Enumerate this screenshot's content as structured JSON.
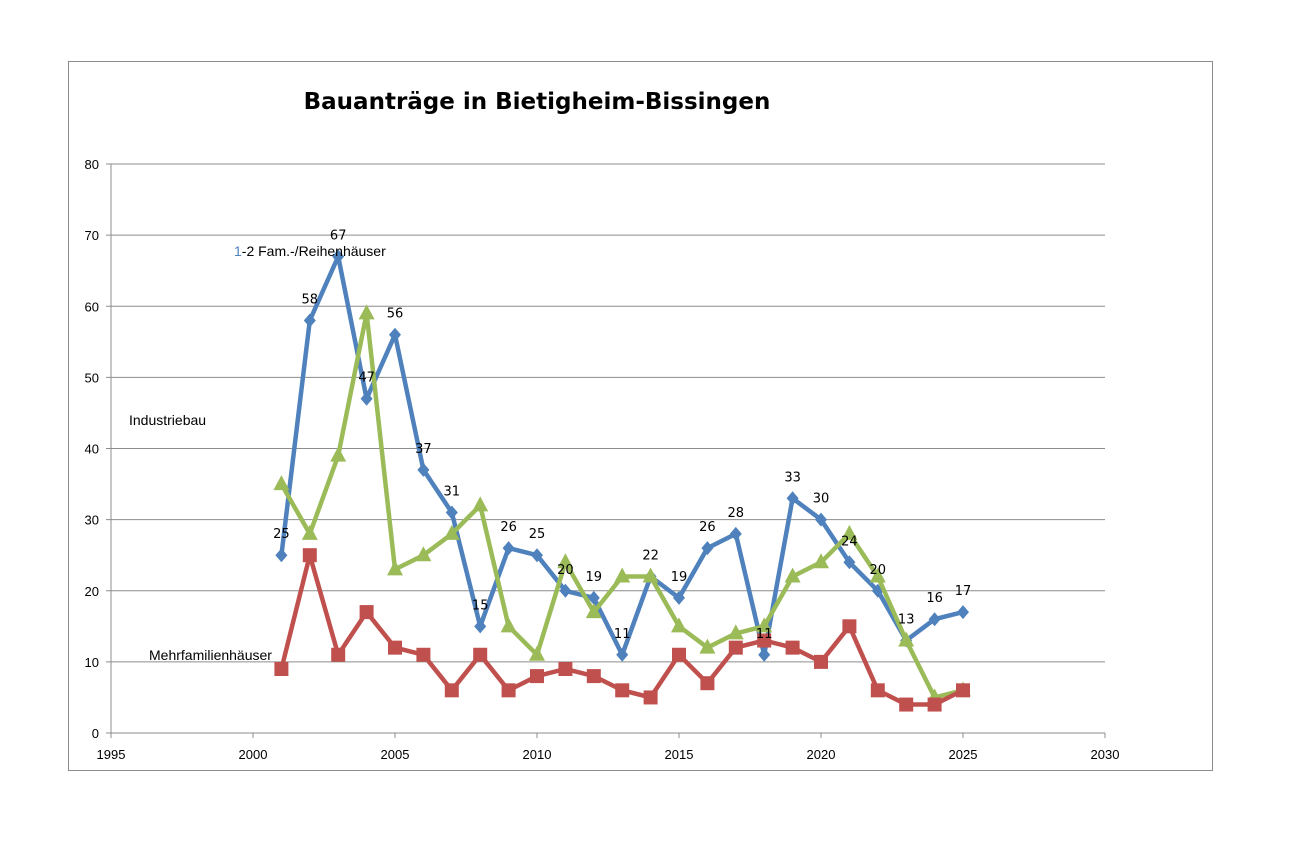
{
  "chart_data": {
    "type": "line",
    "title": "Bauanträge in Bietigheim-Bissingen",
    "xlim": [
      1995,
      2030
    ],
    "ylim": [
      0,
      80
    ],
    "x_ticks": [
      "1995",
      "2000",
      "2005",
      "2010",
      "2015",
      "2020",
      "2025",
      "2030"
    ],
    "y_ticks": [
      "0",
      "10",
      "20",
      "30",
      "40",
      "50",
      "60",
      "70",
      "80"
    ],
    "grid": "horizontal",
    "legend": "none",
    "series_labels": {
      "einfamilien": {
        "prefix": "1",
        "text": "-2 Fam.-/Reihenhäuser"
      },
      "industrie": {
        "text": "Industriebau"
      },
      "mehrfamilien": {
        "text": "Mehrfamilienhäuser"
      }
    },
    "series": [
      {
        "key": "einfamilien",
        "color": "#4f81bd",
        "marker": "diamond",
        "x": [
          2001,
          2002,
          2003,
          2004,
          2005,
          2006,
          2007,
          2008,
          2009,
          2010,
          2011,
          2012,
          2013,
          2014,
          2015,
          2016,
          2017,
          2018,
          2019,
          2020,
          2021,
          2022,
          2023,
          2024,
          2025
        ],
        "values": [
          25,
          58,
          67,
          47,
          56,
          37,
          31,
          15,
          26,
          25,
          20,
          19,
          11,
          22,
          19,
          26,
          28,
          11,
          33,
          30,
          24,
          20,
          13,
          16,
          17
        ],
        "data_labels": [
          "25",
          "58",
          "67",
          "47",
          "56",
          "37",
          "31",
          "15",
          "26",
          "25",
          "20",
          "19",
          "11",
          "22",
          "19",
          "26",
          "28",
          "11",
          "33",
          "30",
          "24",
          "20",
          "13",
          "16",
          "17"
        ]
      },
      {
        "key": "industrie",
        "color": "#9bbb59",
        "marker": "triangle",
        "x": [
          2001,
          2002,
          2003,
          2004,
          2005,
          2006,
          2007,
          2008,
          2009,
          2010,
          2011,
          2012,
          2013,
          2014,
          2015,
          2016,
          2017,
          2018,
          2019,
          2020,
          2021,
          2022,
          2023,
          2024,
          2025
        ],
        "values": [
          35,
          28,
          39,
          59,
          23,
          25,
          28,
          32,
          15,
          11,
          24,
          17,
          22,
          22,
          15,
          12,
          14,
          15,
          22,
          24,
          28,
          22,
          13,
          5,
          6
        ]
      },
      {
        "key": "mehrfamilien",
        "color": "#c0504d",
        "marker": "square",
        "x": [
          2001,
          2002,
          2003,
          2004,
          2005,
          2006,
          2007,
          2008,
          2009,
          2010,
          2011,
          2012,
          2013,
          2014,
          2015,
          2016,
          2017,
          2018,
          2019,
          2020,
          2021,
          2022,
          2023,
          2024,
          2025
        ],
        "values": [
          9,
          25,
          11,
          17,
          12,
          11,
          6,
          11,
          6,
          8,
          9,
          8,
          6,
          5,
          11,
          7,
          12,
          13,
          12,
          10,
          15,
          6,
          4,
          4,
          6
        ]
      }
    ]
  }
}
